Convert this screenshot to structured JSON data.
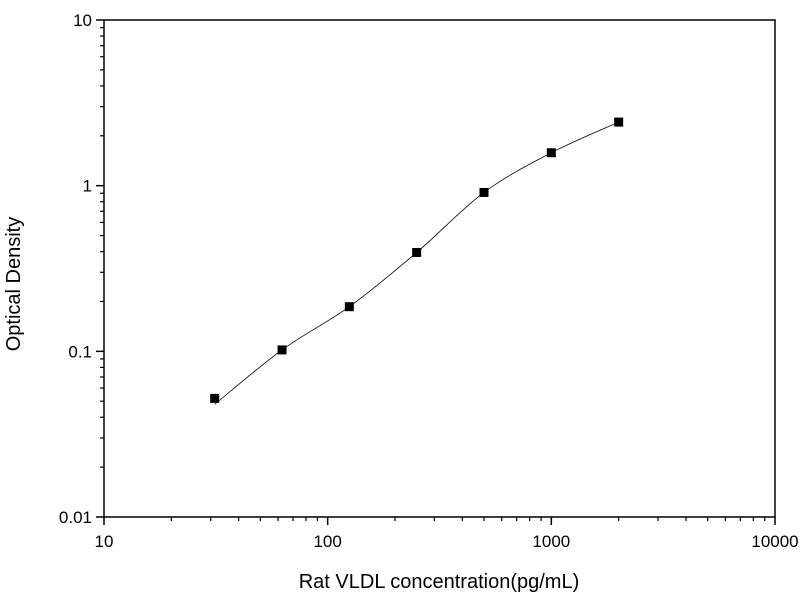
{
  "chart_data": {
    "type": "scatter",
    "title": "",
    "xlabel": "Rat VLDL concentration(pg/mL)",
    "ylabel": "Optical Density",
    "xscale": "log",
    "yscale": "log",
    "xlim": [
      10,
      10000
    ],
    "ylim": [
      0.01,
      10
    ],
    "xticks": [
      "10",
      "100",
      "1000",
      "10000"
    ],
    "yticks": [
      "0.01",
      "0.1",
      "1",
      "10"
    ],
    "grid": false,
    "legend": "none",
    "marker": "square",
    "fit_line": true,
    "color": "#000000",
    "series": [
      {
        "x": [
          31.25,
          62.5,
          125,
          250,
          500,
          1000,
          2000
        ],
        "y": [
          0.052,
          0.102,
          0.186,
          0.395,
          0.91,
          1.58,
          2.42
        ]
      }
    ]
  }
}
